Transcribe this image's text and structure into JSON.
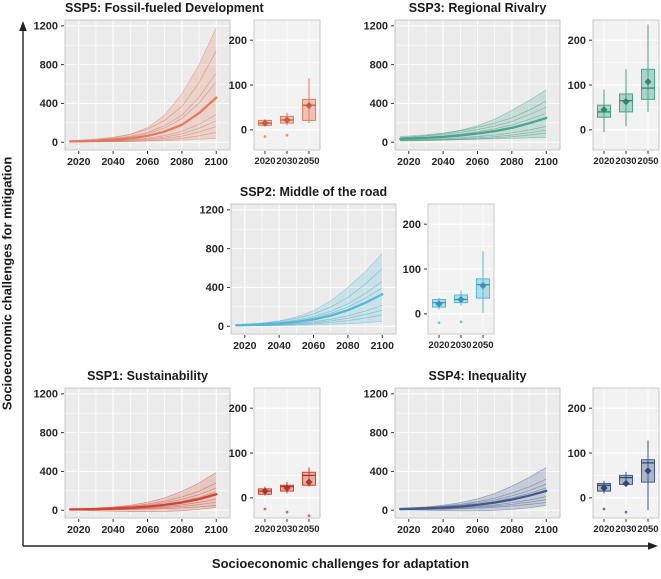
{
  "figure": {
    "x_axis_label": "Socioeconomic challenges for adaptation",
    "y_axis_label": "Socioeconomic challenges for mitigation",
    "background": "#ffffff",
    "panel_background": "#ebebeb",
    "grid_color": "#ffffff",
    "axis_arrow_color": "#222222",
    "tick_text_color": "#262626"
  },
  "chart_data": [
    {
      "id": "ssp5",
      "title": "SSP5: Fossil-fueled Development",
      "position": "top-left",
      "color": "#E87A5B",
      "color_dark": "#BF5A3E",
      "line": {
        "type": "line",
        "x": [
          2015,
          2020,
          2030,
          2040,
          2050,
          2060,
          2070,
          2080,
          2090,
          2100
        ],
        "series": [
          {
            "name": "median",
            "values": [
              8,
              10,
              16,
              25,
              40,
              65,
              110,
              180,
              300,
              460
            ]
          },
          {
            "name": "upper",
            "values": [
              10,
              14,
              25,
              45,
              80,
              150,
              280,
              500,
              800,
              1180
            ]
          },
          {
            "name": "lower",
            "values": [
              3,
              4,
              5,
              7,
              9,
              12,
              16,
              22,
              30,
              40
            ]
          }
        ],
        "member_scales": [
          2.05,
          1.55,
          1.35,
          0.62,
          0.48,
          0.35,
          0.22
        ],
        "xticks": [
          2020,
          2040,
          2060,
          2080,
          2100
        ],
        "yticks": [
          0,
          400,
          800,
          1200
        ],
        "xlim": [
          2012,
          2108
        ],
        "ylim": [
          -80,
          1260
        ],
        "grid": true,
        "legend": "none"
      },
      "box": {
        "type": "box",
        "categories": [
          "2020",
          "2030",
          "2050"
        ],
        "yticks": [
          0,
          100,
          200
        ],
        "ylim": [
          -45,
          245
        ],
        "stats": [
          {
            "low": 8,
            "q1": 10,
            "median": 15,
            "q3": 21,
            "high": 24,
            "mean": 15,
            "outliers": [
              -15
            ]
          },
          {
            "low": 10,
            "q1": 15,
            "median": 22,
            "q3": 30,
            "high": 38,
            "mean": 22,
            "outliers": [
              -12
            ]
          },
          {
            "low": 15,
            "q1": 21,
            "median": 55,
            "q3": 68,
            "high": 115,
            "mean": 54,
            "outliers": []
          }
        ]
      }
    },
    {
      "id": "ssp3",
      "title": "SSP3: Regional Rivalry",
      "position": "top-right",
      "color": "#46A68C",
      "color_dark": "#2E7E68",
      "line": {
        "type": "line",
        "x": [
          2015,
          2020,
          2030,
          2040,
          2050,
          2060,
          2070,
          2080,
          2090,
          2100
        ],
        "series": [
          {
            "name": "median",
            "values": [
              35,
              38,
              45,
              55,
              70,
              90,
              115,
              148,
              195,
              250
            ]
          },
          {
            "name": "upper",
            "values": [
              45,
              52,
              68,
              90,
              122,
              170,
              238,
              330,
              430,
              540
            ]
          },
          {
            "name": "lower",
            "values": [
              20,
              20,
              22,
              25,
              28,
              32,
              36,
              40,
              45,
              50
            ]
          }
        ],
        "member_scales": [
          1.7,
          1.45,
          1.2,
          0.65,
          0.5,
          0.38
        ],
        "xticks": [
          2020,
          2040,
          2060,
          2080,
          2100
        ],
        "yticks": [
          0,
          400,
          800,
          1200
        ],
        "xlim": [
          2012,
          2108
        ],
        "ylim": [
          -80,
          1260
        ],
        "grid": true,
        "legend": "none"
      },
      "box": {
        "type": "box",
        "categories": [
          "2020",
          "2030",
          "2050"
        ],
        "yticks": [
          0,
          100,
          200
        ],
        "ylim": [
          -45,
          245
        ],
        "stats": [
          {
            "low": -5,
            "q1": 28,
            "median": 40,
            "q3": 55,
            "high": 90,
            "mean": 45,
            "outliers": []
          },
          {
            "low": 8,
            "q1": 40,
            "median": 65,
            "q3": 80,
            "high": 135,
            "mean": 63,
            "outliers": []
          },
          {
            "low": 40,
            "q1": 68,
            "median": 93,
            "q3": 135,
            "high": 235,
            "mean": 107,
            "outliers": []
          }
        ]
      }
    },
    {
      "id": "ssp2",
      "title": "SSP2: Middle of the road",
      "position": "middle",
      "color": "#54B9D9",
      "color_dark": "#3391B1",
      "line": {
        "type": "line",
        "x": [
          2015,
          2020,
          2030,
          2040,
          2050,
          2060,
          2070,
          2080,
          2090,
          2100
        ],
        "series": [
          {
            "name": "median",
            "values": [
              10,
              12,
              18,
              28,
              45,
              70,
              110,
              165,
              240,
              330
            ]
          },
          {
            "name": "upper",
            "values": [
              15,
              19,
              32,
              55,
              95,
              160,
              262,
              400,
              560,
              750
            ]
          },
          {
            "name": "lower",
            "values": [
              4,
              5,
              6,
              8,
              11,
              14,
              19,
              26,
              36,
              50
            ]
          }
        ],
        "member_scales": [
          1.8,
          1.4,
          1.2,
          0.65,
          0.5,
          0.35
        ],
        "xticks": [
          2020,
          2040,
          2060,
          2080,
          2100
        ],
        "yticks": [
          0,
          400,
          800,
          1200
        ],
        "xlim": [
          2012,
          2108
        ],
        "ylim": [
          -80,
          1260
        ],
        "grid": true,
        "legend": "none"
      },
      "box": {
        "type": "box",
        "categories": [
          "2020",
          "2030",
          "2050"
        ],
        "yticks": [
          0,
          100,
          200
        ],
        "ylim": [
          -45,
          245
        ],
        "stats": [
          {
            "low": 10,
            "q1": 15,
            "median": 25,
            "q3": 32,
            "high": 36,
            "mean": 22,
            "outliers": [
              -20
            ]
          },
          {
            "low": 18,
            "q1": 25,
            "median": 32,
            "q3": 42,
            "high": 52,
            "mean": 32,
            "outliers": [
              -18
            ]
          },
          {
            "low": 2,
            "q1": 35,
            "median": 65,
            "q3": 78,
            "high": 140,
            "mean": 63,
            "outliers": []
          }
        ]
      }
    },
    {
      "id": "ssp1",
      "title": "SSP1: Sustainability",
      "position": "bottom-left",
      "color": "#D7432F",
      "color_dark": "#A83123",
      "line": {
        "type": "line",
        "x": [
          2015,
          2020,
          2030,
          2040,
          2050,
          2060,
          2070,
          2080,
          2090,
          2100
        ],
        "series": [
          {
            "name": "median",
            "values": [
              8,
              9,
              12,
              17,
              25,
              37,
              55,
              80,
              115,
              165
            ]
          },
          {
            "name": "upper",
            "values": [
              12,
              15,
              22,
              34,
              52,
              82,
              128,
              195,
              282,
              390
            ]
          },
          {
            "name": "lower",
            "values": [
              2,
              0,
              -5,
              -10,
              -14,
              -15,
              -12,
              -5,
              8,
              30
            ]
          }
        ],
        "member_scales": [
          1.7,
          1.4,
          1.15,
          0.7,
          0.5,
          0.3
        ],
        "xticks": [
          2020,
          2040,
          2060,
          2080,
          2100
        ],
        "yticks": [
          0,
          400,
          800,
          1200
        ],
        "xlim": [
          2012,
          2108
        ],
        "ylim": [
          -80,
          1260
        ],
        "grid": true,
        "legend": "none"
      },
      "box": {
        "type": "box",
        "categories": [
          "2020",
          "2030",
          "2050"
        ],
        "yticks": [
          0,
          100,
          200
        ],
        "ylim": [
          -45,
          245
        ],
        "stats": [
          {
            "low": 5,
            "q1": 8,
            "median": 15,
            "q3": 20,
            "high": 25,
            "mean": 15,
            "outliers": [
              -25
            ]
          },
          {
            "low": 10,
            "q1": 15,
            "median": 25,
            "q3": 28,
            "high": 35,
            "mean": 22,
            "outliers": [
              -32
            ]
          },
          {
            "low": 25,
            "q1": 28,
            "median": 50,
            "q3": 57,
            "high": 68,
            "mean": 35,
            "outliers": [
              -40
            ]
          }
        ]
      }
    },
    {
      "id": "ssp4",
      "title": "SSP4: Inequality",
      "position": "bottom-right",
      "color": "#41598F",
      "color_dark": "#2C3F6B",
      "line": {
        "type": "line",
        "x": [
          2015,
          2020,
          2030,
          2040,
          2050,
          2060,
          2070,
          2080,
          2090,
          2100
        ],
        "series": [
          {
            "name": "median",
            "values": [
              12,
              14,
              19,
              27,
              38,
              55,
              78,
              110,
              150,
              200
            ]
          },
          {
            "name": "upper",
            "values": [
              18,
              23,
              34,
              52,
              78,
              118,
              172,
              248,
              338,
              440
            ]
          },
          {
            "name": "lower",
            "values": [
              5,
              3,
              0,
              -4,
              -6,
              -5,
              0,
              8,
              25,
              50
            ]
          }
        ],
        "member_scales": [
          1.6,
          1.35,
          1.15,
          0.7,
          0.55,
          0.4
        ],
        "xticks": [
          2020,
          2040,
          2060,
          2080,
          2100
        ],
        "yticks": [
          0,
          400,
          800,
          1200
        ],
        "xlim": [
          2012,
          2108
        ],
        "ylim": [
          -80,
          1260
        ],
        "grid": true,
        "legend": "none"
      },
      "box": {
        "type": "box",
        "categories": [
          "2020",
          "2030",
          "2050"
        ],
        "yticks": [
          0,
          100,
          200
        ],
        "ylim": [
          -45,
          245
        ],
        "stats": [
          {
            "low": 10,
            "q1": 15,
            "median": 28,
            "q3": 32,
            "high": 38,
            "mean": 22,
            "outliers": [
              -25
            ]
          },
          {
            "low": 25,
            "q1": 30,
            "median": 45,
            "q3": 50,
            "high": 58,
            "mean": 32,
            "outliers": [
              -32
            ]
          },
          {
            "low": -28,
            "q1": 35,
            "median": 78,
            "q3": 85,
            "high": 128,
            "mean": 60,
            "outliers": []
          }
        ]
      }
    }
  ]
}
